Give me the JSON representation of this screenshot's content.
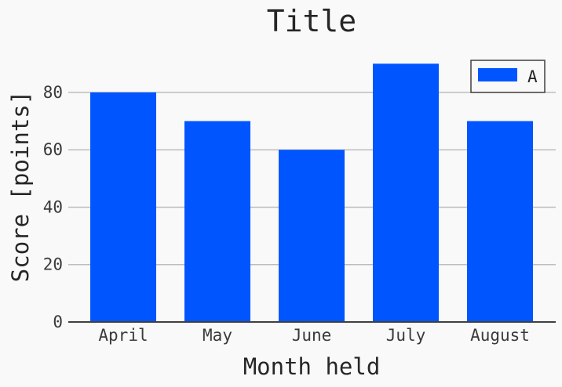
{
  "chart_data": {
    "type": "bar",
    "title": "Title",
    "xlabel": "Month held",
    "ylabel": "Score [points]",
    "categories": [
      "April",
      "May",
      "June",
      "July",
      "August"
    ],
    "series": [
      {
        "name": "A",
        "values": [
          80,
          70,
          60,
          90,
          70
        ],
        "color": "#0055ff"
      }
    ],
    "ylim": [
      0,
      95
    ],
    "yticks": [
      0,
      20,
      40,
      60,
      80
    ],
    "grid": "horizontal",
    "legend": "top-right",
    "colors": {
      "background": "#f9f9f9",
      "grid": "#bdbdbd",
      "axis": "#404040",
      "text": "#262626"
    }
  }
}
